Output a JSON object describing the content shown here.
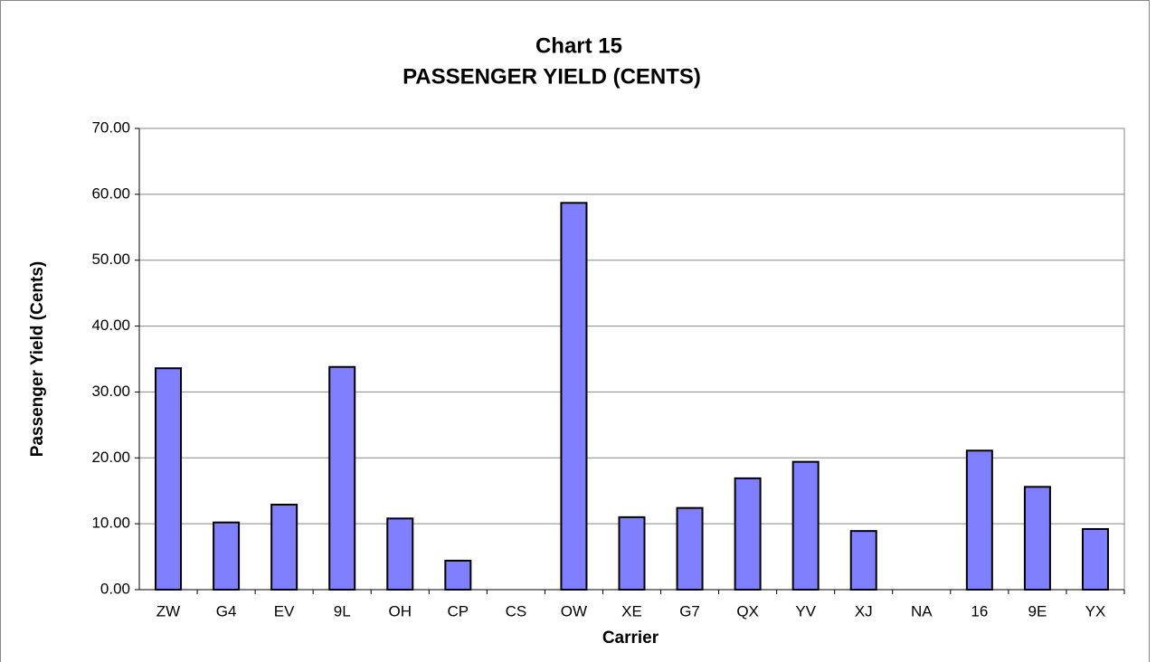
{
  "chart_data": {
    "type": "bar",
    "title": "Chart 15",
    "subtitle": "PASSENGER YIELD (CENTS)",
    "x_label": "Carrier",
    "y_label": "Passenger Yield (Cents)",
    "categories": [
      "ZW",
      "G4",
      "EV",
      "9L",
      "OH",
      "CP",
      "CS",
      "OW",
      "XE",
      "G7",
      "QX",
      "YV",
      "XJ",
      "NA",
      "16",
      "9E",
      "YX"
    ],
    "values": [
      33.6,
      10.2,
      12.9,
      33.8,
      10.8,
      4.4,
      0,
      58.7,
      11.0,
      12.4,
      16.9,
      19.4,
      8.9,
      0,
      21.1,
      15.6,
      9.2
    ],
    "color": "#8080ff",
    "ylim": [
      0,
      70
    ],
    "yticks": [
      {
        "value": 0,
        "label": "0.00"
      },
      {
        "value": 10,
        "label": "10.00"
      },
      {
        "value": 20,
        "label": "20.00"
      },
      {
        "value": 30,
        "label": "30.00"
      },
      {
        "value": 40,
        "label": "40.00"
      },
      {
        "value": 50,
        "label": "50.00"
      },
      {
        "value": 60,
        "label": "60.00"
      },
      {
        "value": 70,
        "label": "70.00"
      }
    ],
    "grid": true
  }
}
